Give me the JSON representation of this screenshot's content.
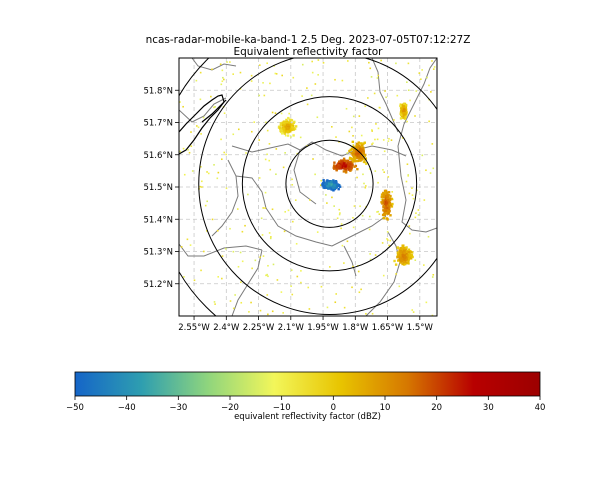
{
  "title_line1": "ncas-radar-mobile-ka-band-1 2.5 Deg. 2023-07-05T07:12:27Z",
  "title_line2": "Equivalent reflectivity factor",
  "map": {
    "lon_range": [
      -2.62,
      -1.42
    ],
    "lat_range": [
      51.1,
      51.9
    ],
    "radar_center": {
      "lon": -1.92,
      "lat": 51.51
    },
    "range_ring_radii_km": [
      15,
      30,
      45,
      60
    ],
    "gridlines": true,
    "lat_ticks": [
      {
        "value": 51.2,
        "label": "51.2°N"
      },
      {
        "value": 51.3,
        "label": "51.3°N"
      },
      {
        "value": 51.4,
        "label": "51.4°N"
      },
      {
        "value": 51.5,
        "label": "51.5°N"
      },
      {
        "value": 51.6,
        "label": "51.6°N"
      },
      {
        "value": 51.7,
        "label": "51.7°N"
      },
      {
        "value": 51.8,
        "label": "51.8°N"
      }
    ],
    "lon_ticks": [
      {
        "value": -2.55,
        "label": "2.55°W"
      },
      {
        "value": -2.4,
        "label": "2.4°W"
      },
      {
        "value": -2.25,
        "label": "2.25°W"
      },
      {
        "value": -2.1,
        "label": "2.1°W"
      },
      {
        "value": -1.95,
        "label": "1.95°W"
      },
      {
        "value": -1.8,
        "label": "1.8°W"
      },
      {
        "value": -1.65,
        "label": "1.65°W"
      },
      {
        "value": -1.5,
        "label": "1.5°W"
      }
    ],
    "echo_clusters": [
      {
        "lon": -1.86,
        "lat": 51.57,
        "dbz": 28,
        "spread_lon": 0.07,
        "spread_lat": 0.025
      },
      {
        "lon": -1.79,
        "lat": 51.61,
        "dbz": 18,
        "spread_lon": 0.05,
        "spread_lat": 0.04
      },
      {
        "lon": -1.66,
        "lat": 51.45,
        "dbz": 20,
        "spread_lon": 0.03,
        "spread_lat": 0.06
      },
      {
        "lon": -1.58,
        "lat": 51.29,
        "dbz": 15,
        "spread_lon": 0.05,
        "spread_lat": 0.04
      },
      {
        "lon": -1.58,
        "lat": 51.74,
        "dbz": 12,
        "spread_lon": 0.02,
        "spread_lat": 0.03
      },
      {
        "lon": -2.12,
        "lat": 51.69,
        "dbz": 8,
        "spread_lon": 0.05,
        "spread_lat": 0.03
      },
      {
        "lon": -1.92,
        "lat": 51.51,
        "dbz": -35,
        "spread_lon": 0.05,
        "spread_lat": 0.02
      }
    ]
  },
  "colorbar": {
    "label": "equivalent reflectivity factor (dBZ)",
    "vmin": -50,
    "vmax": 40,
    "ticks": [
      -50,
      -40,
      -30,
      -20,
      -10,
      0,
      10,
      20,
      30,
      40
    ],
    "tick_labels": [
      "−50",
      "−40",
      "−30",
      "−20",
      "−10",
      "0",
      "10",
      "20",
      "30",
      "40"
    ],
    "colors": [
      "#1565c8",
      "#2e9eb0",
      "#8fd57d",
      "#f2f65a",
      "#e8c400",
      "#d67800",
      "#b80000",
      "#9c0000"
    ]
  }
}
